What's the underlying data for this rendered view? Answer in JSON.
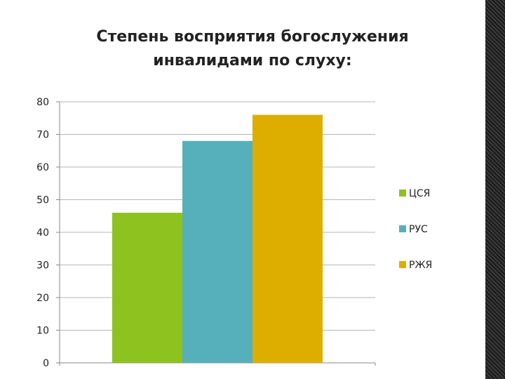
{
  "chart_data": {
    "type": "bar",
    "title": [
      "Степень восприятия богослужения",
      "инвалидами по слуху:"
    ],
    "categories": [
      ""
    ],
    "series": [
      {
        "name": "ЦСЯ",
        "values": [
          46
        ],
        "color": "#8dc21f"
      },
      {
        "name": "РУС",
        "values": [
          68
        ],
        "color": "#56b0bc"
      },
      {
        "name": "РЖЯ",
        "values": [
          76
        ],
        "color": "#ddae00"
      }
    ],
    "yticks": [
      "0",
      "10",
      "20",
      "30",
      "40",
      "50",
      "60",
      "70",
      "80"
    ],
    "ylim": [
      0,
      80
    ],
    "grid": true,
    "legend_position": "right"
  }
}
